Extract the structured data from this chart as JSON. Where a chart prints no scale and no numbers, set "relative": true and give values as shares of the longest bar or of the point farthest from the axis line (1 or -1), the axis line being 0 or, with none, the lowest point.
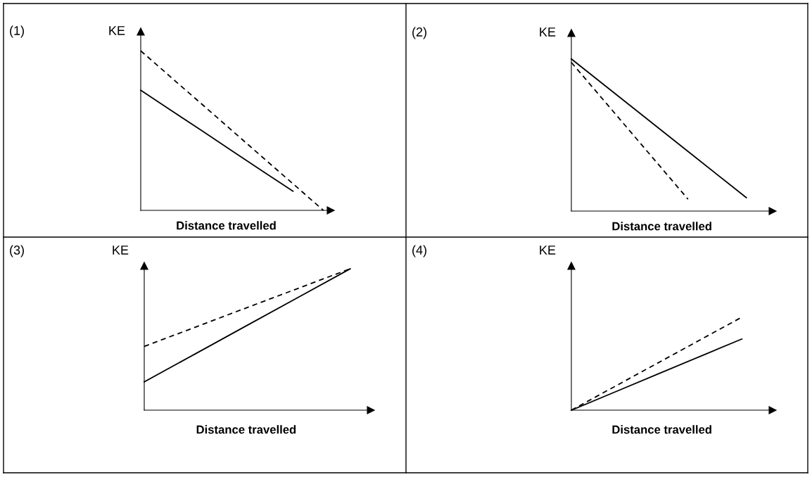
{
  "chart_data": [
    {
      "type": "line",
      "annotations": [
        "(1)"
      ],
      "ylabel": "KE",
      "xlabel": "Distance travelled",
      "relative": true,
      "marker": "none",
      "categories": [
        null,
        null,
        null,
        null,
        null,
        null,
        null
      ],
      "series": [
        {
          "color": "#000000",
          "line_style": "solid",
          "values": [
            0.753,
            0.626,
            0.5,
            0.373,
            0.246,
            0.12,
            null
          ]
        },
        {
          "color": "#000000",
          "line_style": "dashed",
          "values": [
            1,
            0.833,
            0.667,
            0.5,
            0.333,
            0.167,
            0
          ]
        }
      ]
    },
    {
      "type": "line",
      "annotations": [
        "(2)"
      ],
      "ylabel": "KE",
      "xlabel": "Distance travelled",
      "relative": true,
      "marker": "none",
      "categories": [
        null,
        null,
        null,
        null
      ],
      "series": [
        {
          "color": "#000000",
          "line_style": "solid",
          "values": [
            1,
            0.696,
            0.392,
            0.088
          ]
        },
        {
          "color": "#000000",
          "line_style": "dashed",
          "values": [
            0.977,
            0.528,
            0.078,
            null
          ]
        }
      ]
    },
    {
      "type": "line",
      "annotations": [
        "(3)"
      ],
      "ylabel": "KE",
      "xlabel": "Distance travelled",
      "relative": true,
      "marker": "none",
      "categories": [
        null,
        null,
        null,
        null,
        null
      ],
      "series": [
        {
          "color": "#000000",
          "line_style": "solid",
          "values": [
            0.2,
            0.4,
            0.6,
            0.8,
            1
          ]
        },
        {
          "color": "#000000",
          "line_style": "dashed",
          "values": [
            0.451,
            0.588,
            0.726,
            0.863,
            1
          ]
        }
      ]
    },
    {
      "type": "line",
      "annotations": [
        "(4)"
      ],
      "ylabel": "KE",
      "xlabel": "Distance travelled",
      "relative": true,
      "marker": "none",
      "categories": [
        null,
        null,
        null,
        null,
        null
      ],
      "series": [
        {
          "color": "#000000",
          "line_style": "solid",
          "values": [
            0,
            0.191,
            0.383,
            0.574,
            0.765
          ]
        },
        {
          "color": "#000000",
          "line_style": "dashed",
          "values": [
            0,
            0.25,
            0.5,
            0.75,
            1
          ]
        }
      ]
    }
  ]
}
